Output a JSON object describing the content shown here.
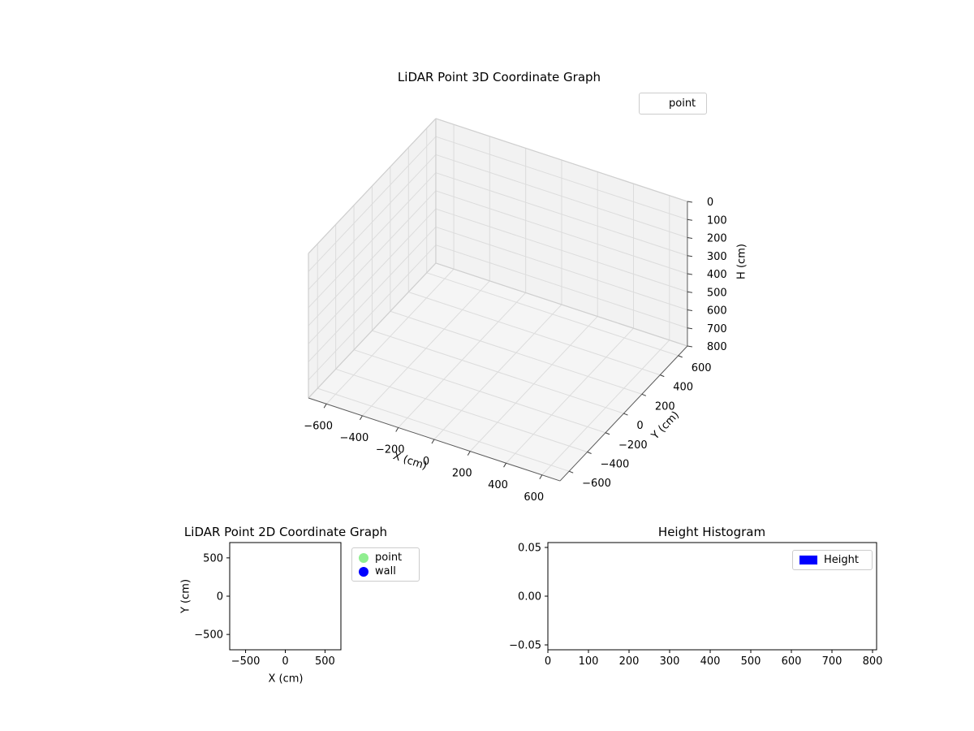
{
  "figure": {
    "background": "#ffffff",
    "pane_wall_color": "#f2f2f2",
    "pane_floor_color": "#f5f5f5",
    "grid_color": "#dcdcdc",
    "pane_edge_color": "#cfcfcf",
    "axis_line_color": "#5a5a5a",
    "tick_color": "#3a3a3a",
    "text_color": "#000000"
  },
  "plot3d": {
    "title": "LiDAR Point 3D Coordinate Graph",
    "xlabel": "X (cm)",
    "ylabel": "Y (cm)",
    "zlabel": "H (cm)",
    "legend": {
      "items": [
        {
          "label": "point",
          "marker": "none",
          "marker_color": ""
        }
      ]
    }
  },
  "plot2d": {
    "title": "LiDAR Point 2D Coordinate Graph",
    "xlabel": "X (cm)",
    "ylabel": "Y (cm)",
    "legend": {
      "items": [
        {
          "label": "point",
          "marker": "circle",
          "marker_color": "#90ee90"
        },
        {
          "label": "wall",
          "marker": "circle",
          "marker_color": "#0000ff"
        }
      ]
    }
  },
  "hist": {
    "title": "Height Histogram",
    "legend": {
      "items": [
        {
          "label": "Height",
          "marker": "rect",
          "marker_color": "#0000ff"
        }
      ]
    }
  },
  "chart_data": [
    {
      "id": "lidar-3d",
      "type": "scatter",
      "projection": "3d",
      "title": "LiDAR Point 3D Coordinate Graph",
      "xlabel": "X (cm)",
      "ylabel": "Y (cm)",
      "zlabel": "H (cm)",
      "xlim": [
        -700,
        700
      ],
      "ylim": [
        -700,
        700
      ],
      "zlim": [
        0,
        800
      ],
      "zaxis_inverted": true,
      "xticks": [
        -600,
        -400,
        -200,
        0,
        200,
        400,
        600
      ],
      "yticks": [
        -600,
        -400,
        -200,
        0,
        200,
        400,
        600
      ],
      "zticks": [
        0,
        100,
        200,
        300,
        400,
        500,
        600,
        700,
        800
      ],
      "grid": true,
      "legend_entries": [
        "point"
      ],
      "legend_loc": "upper right",
      "series": [
        {
          "name": "point",
          "points": []
        }
      ]
    },
    {
      "id": "lidar-2d",
      "type": "scatter",
      "title": "LiDAR Point 2D Coordinate Graph",
      "xlabel": "X (cm)",
      "ylabel": "Y (cm)",
      "xlim": [
        -700,
        700
      ],
      "ylim": [
        -700,
        700
      ],
      "xticks": [
        -500,
        0,
        500
      ],
      "yticks": [
        500,
        0,
        -500
      ],
      "grid": false,
      "legend_entries": [
        "point",
        "wall"
      ],
      "legend_loc": "upper right outside",
      "series": [
        {
          "name": "point",
          "color": "#90ee90",
          "points": []
        },
        {
          "name": "wall",
          "color": "#0000ff",
          "points": []
        }
      ]
    },
    {
      "id": "height-histogram",
      "type": "bar",
      "title": "Height Histogram",
      "xlabel": "",
      "ylabel": "",
      "xlim": [
        0,
        810
      ],
      "ylim": [
        -0.055,
        0.055
      ],
      "xticks": [
        0,
        100,
        200,
        300,
        400,
        500,
        600,
        700,
        800
      ],
      "yticks": [
        0.05,
        0.0,
        -0.05
      ],
      "ytick_labels": [
        "0.05",
        "0.00",
        "−0.05"
      ],
      "grid": false,
      "legend_entries": [
        "Height"
      ],
      "legend_loc": "upper right",
      "series": [
        {
          "name": "Height",
          "color": "#0000ff",
          "values": []
        }
      ]
    }
  ]
}
